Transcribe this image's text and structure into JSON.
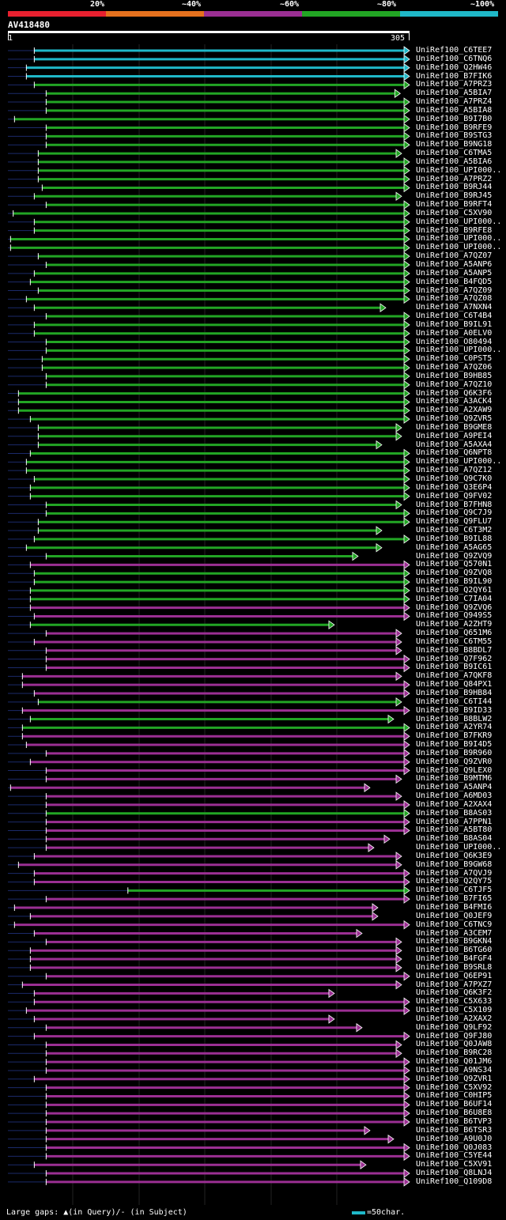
{
  "legend": [
    {
      "label": "20%",
      "color": "#e8202f"
    },
    {
      "label": "~40%",
      "color": "#e5711e"
    },
    {
      "label": "~60%",
      "color": "#9b2f93"
    },
    {
      "label": "~80%",
      "color": "#22a524"
    },
    {
      "label": "~100%",
      "color": "#1fb8c8"
    }
  ],
  "query": {
    "id": "AV418480",
    "start": "1",
    "end": "305"
  },
  "hits": [
    {
      "name": "UniRef100_C6TEE7",
      "color": "cyan",
      "start": 21,
      "end": 305,
      "arrow": true
    },
    {
      "name": "UniRef100_C6TNQ6",
      "color": "cyan",
      "start": 21,
      "end": 305,
      "arrow": true
    },
    {
      "name": "UniRef100_Q2HW46",
      "color": "cyan",
      "start": 15,
      "end": 305,
      "arrow": true
    },
    {
      "name": "UniRef100_B7FIK6",
      "color": "cyan",
      "start": 15,
      "end": 305,
      "arrow": true
    },
    {
      "name": "UniRef100_A7PRZ3",
      "color": "green",
      "start": 21,
      "end": 305,
      "arrow": true
    },
    {
      "name": "UniRef100_A5BIA7",
      "color": "green",
      "start": 30,
      "end": 298,
      "arrow": true
    },
    {
      "name": "UniRef100_A7PRZ4",
      "color": "green",
      "start": 30,
      "end": 305,
      "arrow": true
    },
    {
      "name": "UniRef100_A5BIA8",
      "color": "green",
      "start": 30,
      "end": 305,
      "arrow": true
    },
    {
      "name": "UniRef100_B9I7B0",
      "color": "green",
      "start": 6,
      "end": 305,
      "arrow": true
    },
    {
      "name": "UniRef100_B9RFE9",
      "color": "green",
      "start": 30,
      "end": 305,
      "arrow": true
    },
    {
      "name": "UniRef100_B9STG3",
      "color": "green",
      "start": 30,
      "end": 305,
      "arrow": true
    },
    {
      "name": "UniRef100_B9NG18",
      "color": "green",
      "start": 30,
      "end": 305,
      "arrow": true
    },
    {
      "name": "UniRef100_C6TMA5",
      "color": "green",
      "start": 24,
      "end": 299,
      "arrow": true
    },
    {
      "name": "UniRef100_A5BIA6",
      "color": "green",
      "start": 24,
      "end": 305,
      "arrow": true
    },
    {
      "name": "UniRef100_UPI000..",
      "color": "green",
      "start": 24,
      "end": 305,
      "arrow": true
    },
    {
      "name": "UniRef100_A7PRZ2",
      "color": "green",
      "start": 24,
      "end": 305,
      "arrow": true
    },
    {
      "name": "UniRef100_B9RJ44",
      "color": "green",
      "start": 27,
      "end": 305,
      "arrow": true
    },
    {
      "name": "UniRef100_B9RJ45",
      "color": "green",
      "start": 21,
      "end": 299,
      "arrow": true
    },
    {
      "name": "UniRef100_B9RFT4",
      "color": "green",
      "start": 30,
      "end": 305,
      "arrow": true
    },
    {
      "name": "UniRef100_C5XV90",
      "color": "green",
      "start": 5,
      "end": 305,
      "arrow": true
    },
    {
      "name": "UniRef100_UPI000..",
      "color": "green",
      "start": 21,
      "end": 305,
      "arrow": true
    },
    {
      "name": "UniRef100_B9RFE8",
      "color": "green",
      "start": 21,
      "end": 305,
      "arrow": true
    },
    {
      "name": "UniRef100_UPI000..",
      "color": "green",
      "start": 3,
      "end": 305,
      "arrow": true
    },
    {
      "name": "UniRef100_UPI000..",
      "color": "green",
      "start": 3,
      "end": 305,
      "arrow": true
    },
    {
      "name": "UniRef100_A7QZ07",
      "color": "green",
      "start": 24,
      "end": 305,
      "arrow": true
    },
    {
      "name": "UniRef100_A5ANP6",
      "color": "green",
      "start": 30,
      "end": 305,
      "arrow": true
    },
    {
      "name": "UniRef100_A5ANP5",
      "color": "green",
      "start": 21,
      "end": 305,
      "arrow": true
    },
    {
      "name": "UniRef100_B4FQD5",
      "color": "green",
      "start": 18,
      "end": 305,
      "arrow": true
    },
    {
      "name": "UniRef100_A7QZ09",
      "color": "green",
      "start": 24,
      "end": 305,
      "arrow": true
    },
    {
      "name": "UniRef100_A7QZ08",
      "color": "green",
      "start": 15,
      "end": 305,
      "arrow": true
    },
    {
      "name": "UniRef100_A7NXN4",
      "color": "green",
      "start": 21,
      "end": 287,
      "arrow": true
    },
    {
      "name": "UniRef100_C6T4B4",
      "color": "green",
      "start": 30,
      "end": 305,
      "arrow": true
    },
    {
      "name": "UniRef100_B9IL91",
      "color": "green",
      "start": 21,
      "end": 305,
      "arrow": true
    },
    {
      "name": "UniRef100_A0ELV0",
      "color": "green",
      "start": 21,
      "end": 305,
      "arrow": true
    },
    {
      "name": "UniRef100_O80494",
      "color": "green",
      "start": 30,
      "end": 305,
      "arrow": true
    },
    {
      "name": "UniRef100_UPI000..",
      "color": "green",
      "start": 30,
      "end": 305,
      "arrow": true
    },
    {
      "name": "UniRef100_C0PST5",
      "color": "green",
      "start": 27,
      "end": 305,
      "arrow": true
    },
    {
      "name": "UniRef100_A7QZ06",
      "color": "green",
      "start": 27,
      "end": 305,
      "arrow": true
    },
    {
      "name": "UniRef100_B9HB85",
      "color": "green",
      "start": 30,
      "end": 305,
      "arrow": true
    },
    {
      "name": "UniRef100_A7QZ10",
      "color": "green",
      "start": 30,
      "end": 305,
      "arrow": true
    },
    {
      "name": "UniRef100_Q6K3F6",
      "color": "green",
      "start": 9,
      "end": 305,
      "arrow": true
    },
    {
      "name": "UniRef100_A3ACK4",
      "color": "green",
      "start": 9,
      "end": 305,
      "arrow": true
    },
    {
      "name": "UniRef100_A2XAW9",
      "color": "green",
      "start": 9,
      "end": 305,
      "arrow": true
    },
    {
      "name": "UniRef100_Q9ZVR5",
      "color": "green",
      "start": 18,
      "end": 305,
      "arrow": true
    },
    {
      "name": "UniRef100_B9GME8",
      "color": "green",
      "start": 24,
      "end": 299,
      "arrow": true
    },
    {
      "name": "UniRef100_A9PEI4",
      "color": "green",
      "start": 24,
      "end": 299,
      "arrow": true
    },
    {
      "name": "UniRef100_A5AXA4",
      "color": "green",
      "start": 24,
      "end": 284,
      "arrow": true
    },
    {
      "name": "UniRef100_Q6NPT8",
      "color": "green",
      "start": 18,
      "end": 305,
      "arrow": true
    },
    {
      "name": "UniRef100_UPI000..",
      "color": "green",
      "start": 15,
      "end": 305,
      "arrow": true
    },
    {
      "name": "UniRef100_A7QZ12",
      "color": "green",
      "start": 15,
      "end": 305,
      "arrow": true
    },
    {
      "name": "UniRef100_Q9C7K0",
      "color": "green",
      "start": 21,
      "end": 305,
      "arrow": true
    },
    {
      "name": "UniRef100_Q3E6P4",
      "color": "green",
      "start": 18,
      "end": 305,
      "arrow": true
    },
    {
      "name": "UniRef100_Q9FV02",
      "color": "green",
      "start": 18,
      "end": 305,
      "arrow": true
    },
    {
      "name": "UniRef100_B7FHN8",
      "color": "green",
      "start": 30,
      "end": 299,
      "arrow": true
    },
    {
      "name": "UniRef100_Q9C7J9",
      "color": "green",
      "start": 30,
      "end": 305,
      "arrow": true
    },
    {
      "name": "UniRef100_Q9FLU7",
      "color": "green",
      "start": 24,
      "end": 305,
      "arrow": true
    },
    {
      "name": "UniRef100_C6T3M2",
      "color": "green",
      "start": 24,
      "end": 284,
      "arrow": true
    },
    {
      "name": "UniRef100_B9IL88",
      "color": "green",
      "start": 21,
      "end": 305,
      "arrow": true
    },
    {
      "name": "UniRef100_A5AG65",
      "color": "green",
      "start": 15,
      "end": 284,
      "arrow": true
    },
    {
      "name": "UniRef100_Q9ZVQ9",
      "color": "green",
      "start": 30,
      "end": 266,
      "arrow": true
    },
    {
      "name": "UniRef100_Q570N1",
      "color": "purple",
      "start": 18,
      "end": 305,
      "arrow": true
    },
    {
      "name": "UniRef100_Q9ZVQ8",
      "color": "green",
      "start": 21,
      "end": 305,
      "arrow": true
    },
    {
      "name": "UniRef100_B9IL90",
      "color": "green",
      "start": 21,
      "end": 305,
      "arrow": true
    },
    {
      "name": "UniRef100_Q2QY61",
      "color": "green",
      "start": 18,
      "end": 305,
      "arrow": true
    },
    {
      "name": "UniRef100_C7IA04",
      "color": "green",
      "start": 18,
      "end": 305,
      "arrow": true
    },
    {
      "name": "UniRef100_Q9ZVQ6",
      "color": "purple",
      "start": 18,
      "end": 305,
      "arrow": true
    },
    {
      "name": "UniRef100_Q949S5",
      "color": "purple",
      "start": 21,
      "end": 305,
      "arrow": true
    },
    {
      "name": "UniRef100_A2ZHT9",
      "color": "green",
      "start": 18,
      "end": 248,
      "arrow": true
    },
    {
      "name": "UniRef100_Q651M6",
      "color": "purple",
      "start": 30,
      "end": 299,
      "arrow": true
    },
    {
      "name": "UniRef100_C6TM55",
      "color": "purple",
      "start": 21,
      "end": 299,
      "arrow": true
    },
    {
      "name": "UniRef100_B8BDL7",
      "color": "purple",
      "start": 30,
      "end": 299,
      "arrow": true
    },
    {
      "name": "UniRef100_Q7F962",
      "color": "purple",
      "start": 30,
      "end": 305,
      "arrow": true
    },
    {
      "name": "UniRef100_B9IC61",
      "color": "purple",
      "start": 30,
      "end": 305,
      "arrow": true
    },
    {
      "name": "UniRef100_A7QKF8",
      "color": "purple",
      "start": 12,
      "end": 299,
      "arrow": true
    },
    {
      "name": "UniRef100_Q84PX1",
      "color": "purple",
      "start": 12,
      "end": 305,
      "arrow": true
    },
    {
      "name": "UniRef100_B9HB84",
      "color": "purple",
      "start": 21,
      "end": 305,
      "arrow": true
    },
    {
      "name": "UniRef100_C6TI44",
      "color": "green",
      "start": 24,
      "end": 299,
      "arrow": true
    },
    {
      "name": "UniRef100_B9ID33",
      "color": "purple",
      "start": 12,
      "end": 305,
      "arrow": true
    },
    {
      "name": "UniRef100_B8BLW2",
      "color": "green",
      "start": 18,
      "end": 293,
      "arrow": true
    },
    {
      "name": "UniRef100_A2YR74",
      "color": "green",
      "start": 12,
      "end": 305,
      "arrow": true
    },
    {
      "name": "UniRef100_B7FKR9",
      "color": "purple",
      "start": 12,
      "end": 305,
      "arrow": true
    },
    {
      "name": "UniRef100_B9I4D5",
      "color": "purple",
      "start": 15,
      "end": 305,
      "arrow": true
    },
    {
      "name": "UniRef100_B9R960",
      "color": "purple",
      "start": 30,
      "end": 305,
      "arrow": true
    },
    {
      "name": "UniRef100_Q9ZVR0",
      "color": "purple",
      "start": 18,
      "end": 305,
      "arrow": true
    },
    {
      "name": "UniRef100_Q9LEX0",
      "color": "purple",
      "start": 30,
      "end": 305,
      "arrow": true
    },
    {
      "name": "UniRef100_B9MTM6",
      "color": "purple",
      "start": 30,
      "end": 299,
      "arrow": true
    },
    {
      "name": "UniRef100_A5ANP4",
      "color": "purple",
      "start": 3,
      "end": 275,
      "arrow": true
    },
    {
      "name": "UniRef100_A6MD03",
      "color": "purple",
      "start": 30,
      "end": 299,
      "arrow": true
    },
    {
      "name": "UniRef100_A2XAX4",
      "color": "purple",
      "start": 30,
      "end": 305,
      "arrow": true
    },
    {
      "name": "UniRef100_B8AS03",
      "color": "green",
      "start": 30,
      "end": 305,
      "arrow": true
    },
    {
      "name": "UniRef100_A7PPN1",
      "color": "purple",
      "start": 30,
      "end": 305,
      "arrow": true
    },
    {
      "name": "UniRef100_A5BT80",
      "color": "purple",
      "start": 30,
      "end": 305,
      "arrow": true
    },
    {
      "name": "UniRef100_B8AS04",
      "color": "purple",
      "start": 30,
      "end": 290,
      "arrow": true
    },
    {
      "name": "UniRef100_UPI000..",
      "color": "purple",
      "start": 30,
      "end": 278,
      "arrow": true
    },
    {
      "name": "UniRef100_Q6K3E9",
      "color": "purple",
      "start": 21,
      "end": 299,
      "arrow": true
    },
    {
      "name": "UniRef100_B9GW68",
      "color": "purple",
      "start": 9,
      "end": 299,
      "arrow": true
    },
    {
      "name": "UniRef100_A7QVJ9",
      "color": "purple",
      "start": 21,
      "end": 305,
      "arrow": true
    },
    {
      "name": "UniRef100_Q2QY75",
      "color": "purple",
      "start": 21,
      "end": 305,
      "arrow": true
    },
    {
      "name": "UniRef100_C6TJF5",
      "color": "green",
      "start": 92,
      "end": 305,
      "arrow": true
    },
    {
      "name": "UniRef100_B7FI65",
      "color": "purple",
      "start": 30,
      "end": 305,
      "arrow": true
    },
    {
      "name": "UniRef100_B4FMI6",
      "color": "purple",
      "start": 6,
      "end": 281,
      "arrow": true
    },
    {
      "name": "UniRef100_Q0JEF9",
      "color": "purple",
      "start": 18,
      "end": 281,
      "arrow": true
    },
    {
      "name": "UniRef100_C6TNC9",
      "color": "purple",
      "start": 6,
      "end": 305,
      "arrow": true
    },
    {
      "name": "UniRef100_A3CEM7",
      "color": "purple",
      "start": 21,
      "end": 269,
      "arrow": true
    },
    {
      "name": "UniRef100_B9GKN4",
      "color": "purple",
      "start": 30,
      "end": 299,
      "arrow": true
    },
    {
      "name": "UniRef100_B6TG60",
      "color": "purple",
      "start": 18,
      "end": 299,
      "arrow": true
    },
    {
      "name": "UniRef100_B4FGF4",
      "color": "purple",
      "start": 18,
      "end": 299,
      "arrow": true
    },
    {
      "name": "UniRef100_B9SRL8",
      "color": "purple",
      "start": 18,
      "end": 299,
      "arrow": true
    },
    {
      "name": "UniRef100_Q6EP91",
      "color": "purple",
      "start": 30,
      "end": 305,
      "arrow": true
    },
    {
      "name": "UniRef100_A7PXZ7",
      "color": "purple",
      "start": 12,
      "end": 299,
      "arrow": true
    },
    {
      "name": "UniRef100_Q6K3F2",
      "color": "purple",
      "start": 21,
      "end": 248,
      "arrow": true
    },
    {
      "name": "UniRef100_C5X633",
      "color": "purple",
      "start": 21,
      "end": 305,
      "arrow": true
    },
    {
      "name": "UniRef100_C5X109",
      "color": "purple",
      "start": 15,
      "end": 305,
      "arrow": true
    },
    {
      "name": "UniRef100_A2XAX2",
      "color": "purple",
      "start": 21,
      "end": 248,
      "arrow": true
    },
    {
      "name": "UniRef100_Q9LF92",
      "color": "purple",
      "start": 30,
      "end": 269,
      "arrow": true
    },
    {
      "name": "UniRef100_Q9FJ80",
      "color": "purple",
      "start": 21,
      "end": 305,
      "arrow": true
    },
    {
      "name": "UniRef100_Q0JAW8",
      "color": "purple",
      "start": 30,
      "end": 299,
      "arrow": true
    },
    {
      "name": "UniRef100_B9RC28",
      "color": "purple",
      "start": 30,
      "end": 299,
      "arrow": true
    },
    {
      "name": "UniRef100_Q01JM6",
      "color": "purple",
      "start": 30,
      "end": 305,
      "arrow": true
    },
    {
      "name": "UniRef100_A9NS34",
      "color": "purple",
      "start": 30,
      "end": 305,
      "arrow": true
    },
    {
      "name": "UniRef100_Q9ZVR1",
      "color": "purple",
      "start": 21,
      "end": 305,
      "arrow": true
    },
    {
      "name": "UniRef100_C5XV92",
      "color": "purple",
      "start": 30,
      "end": 305,
      "arrow": true
    },
    {
      "name": "UniRef100_C0HIP5",
      "color": "purple",
      "start": 30,
      "end": 305,
      "arrow": true
    },
    {
      "name": "UniRef100_B6UF14",
      "color": "purple",
      "start": 30,
      "end": 305,
      "arrow": true
    },
    {
      "name": "UniRef100_B6U8E8",
      "color": "purple",
      "start": 30,
      "end": 305,
      "arrow": true
    },
    {
      "name": "UniRef100_B6TVP3",
      "color": "purple",
      "start": 30,
      "end": 305,
      "arrow": true
    },
    {
      "name": "UniRef100_B6TSR3",
      "color": "purple",
      "start": 30,
      "end": 275,
      "arrow": true
    },
    {
      "name": "UniRef100_A9U0J0",
      "color": "purple",
      "start": 30,
      "end": 293,
      "arrow": true
    },
    {
      "name": "UniRef100_Q0J083",
      "color": "purple",
      "start": 30,
      "end": 305,
      "arrow": true
    },
    {
      "name": "UniRef100_C5YE44",
      "color": "purple",
      "start": 30,
      "end": 305,
      "arrow": true
    },
    {
      "name": "UniRef100_C5XV91",
      "color": "purple",
      "start": 21,
      "end": 272,
      "arrow": true
    },
    {
      "name": "UniRef100_Q8LNJ4",
      "color": "purple",
      "start": 30,
      "end": 305,
      "arrow": true
    },
    {
      "name": "UniRef100_Q109D8",
      "color": "purple",
      "start": 30,
      "end": 305,
      "arrow": true
    }
  ],
  "footer": {
    "gaps_text": "Large gaps: ▲(in Query)/- (in Subject)",
    "scale_text": "=50char."
  }
}
